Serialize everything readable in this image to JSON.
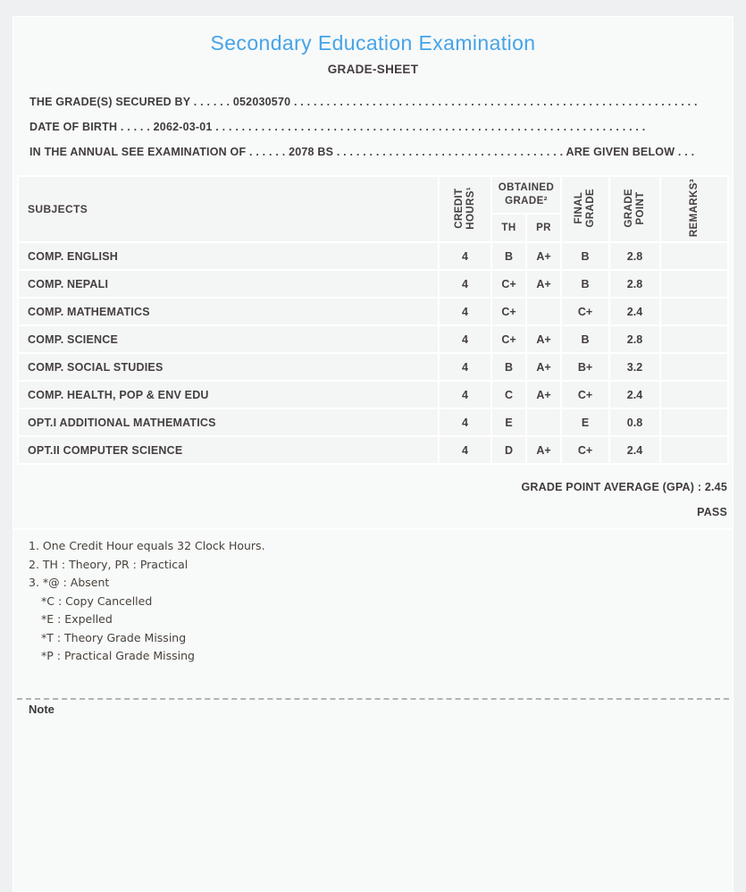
{
  "colors": {
    "accent_blue": "#45a4e9",
    "corner_mark_red": "#cb0b0b",
    "cell_gray": "#f4f5f5"
  },
  "header": {
    "title": "Secondary Education Examination",
    "subtitle": "GRADE-SHEET"
  },
  "info_lines": [
    {
      "label": "THE GRADE(S) SECURED BY",
      "dots_before": ". . . . . .",
      "value": "052030570",
      "dots_after": ". . . . . . . . . . . . . . . . . . . . . . . . . . . . . . . . . . . . . . . . . . . . . . . . . . . . . . . . . . . . . .",
      "suffix": "",
      "dots_end": ""
    },
    {
      "label": "DATE OF BIRTH",
      "dots_before": ". . . . .",
      "value": "2062-03-01",
      "dots_after": ". . . . . . . . . . . . . . . . . . . . . . . . . . . . . . . . . . . . . . . . . . . . . . . . . . . . . . . . . . . . . . . . . .",
      "suffix": "",
      "dots_end": ""
    },
    {
      "label": "IN THE ANNUAL SEE EXAMINATION OF",
      "dots_before": ". . . . . .",
      "value": "2078 BS",
      "dots_after": ". . . . . . . . . . . . . . . . . . . . . . . . . . . . . . . . . . .",
      "suffix": "ARE GIVEN BELOW",
      "dots_end": ". . ."
    }
  ],
  "table": {
    "columns": {
      "subjects": "SUBJECTS",
      "credit_hours": "CREDIT\nHOURS¹",
      "obtained_grade": "OBTAINED\nGRADE²",
      "th_label": "TH",
      "pr_label": "PR",
      "final_grade": "FINAL\nGRADE",
      "grade_point": "GRADE\nPOINT",
      "remarks": "REMARKS³"
    },
    "rows": [
      {
        "subject": "COMP. ENGLISH",
        "credit": "4",
        "th": "B",
        "pr": "A+",
        "final": "B",
        "gp": "2.8",
        "remarks": ""
      },
      {
        "subject": "COMP. NEPALI",
        "credit": "4",
        "th": "C+",
        "pr": "A+",
        "final": "B",
        "gp": "2.8",
        "remarks": ""
      },
      {
        "subject": "COMP. MATHEMATICS",
        "credit": "4",
        "th": "C+",
        "pr": "",
        "final": "C+",
        "gp": "2.4",
        "remarks": ""
      },
      {
        "subject": "COMP. SCIENCE",
        "credit": "4",
        "th": "C+",
        "pr": "A+",
        "final": "B",
        "gp": "2.8",
        "remarks": ""
      },
      {
        "subject": "COMP. SOCIAL STUDIES",
        "credit": "4",
        "th": "B",
        "pr": "A+",
        "final": "B+",
        "gp": "3.2",
        "remarks": ""
      },
      {
        "subject": "COMP. HEALTH, POP & ENV EDU",
        "credit": "4",
        "th": "C",
        "pr": "A+",
        "final": "C+",
        "gp": "2.4",
        "remarks": ""
      },
      {
        "subject": "OPT.I ADDITIONAL MATHEMATICS",
        "credit": "4",
        "th": "E",
        "pr": "",
        "final": "E",
        "gp": "0.8",
        "remarks": ""
      },
      {
        "subject": "OPT.II COMPUTER SCIENCE",
        "credit": "4",
        "th": "D",
        "pr": "A+",
        "final": "C+",
        "gp": "2.4",
        "remarks": ""
      }
    ]
  },
  "summary": {
    "gpa_text": "GRADE POINT AVERAGE (GPA) : 2.45",
    "result": "PASS"
  },
  "notes": {
    "items": [
      {
        "text": "1. One Credit Hour equals 32 Clock Hours.",
        "indent": false
      },
      {
        "text": "2. TH : Theory, PR : Practical",
        "indent": false
      },
      {
        "text": "3. *@ : Absent",
        "indent": false
      },
      {
        "text": "*C : Copy Cancelled",
        "indent": true
      },
      {
        "text": "*E : Expelled",
        "indent": true
      },
      {
        "text": "*T : Theory Grade Missing",
        "indent": true
      },
      {
        "text": "*P : Practical Grade Missing",
        "indent": true
      }
    ]
  },
  "footer": {
    "note_cut": "Note"
  }
}
